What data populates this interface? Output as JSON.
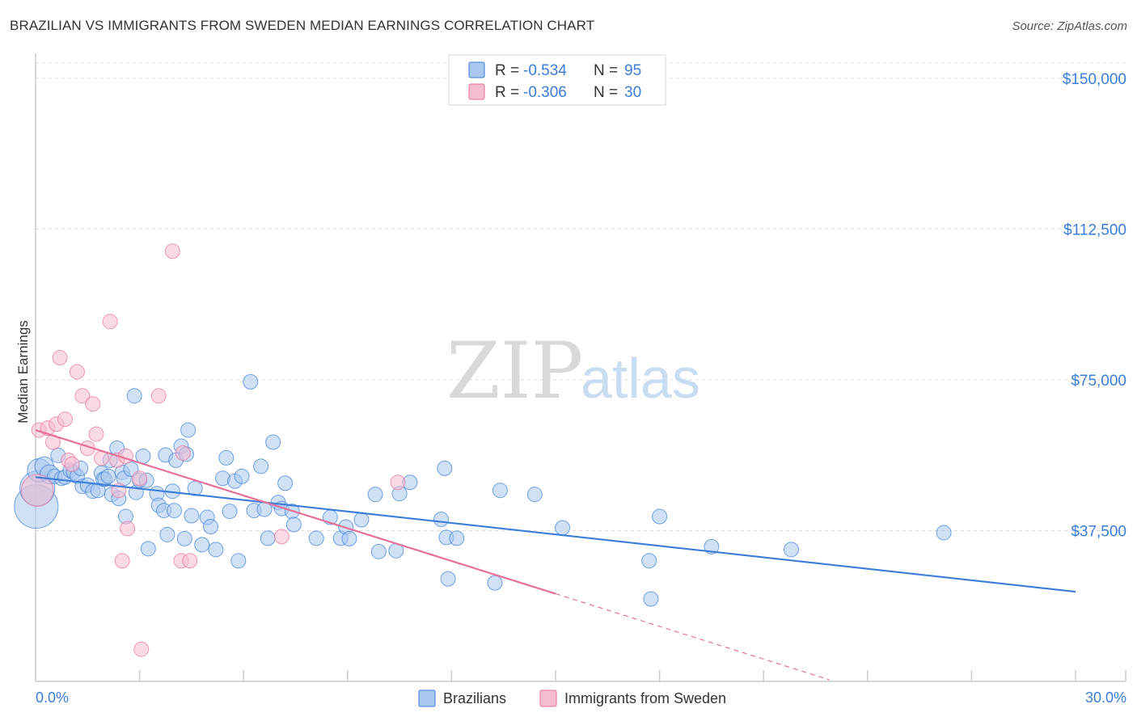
{
  "title": "BRAZILIAN VS IMMIGRANTS FROM SWEDEN MEDIAN EARNINGS CORRELATION CHART",
  "source": "Source: ZipAtlas.com",
  "watermark": {
    "part1": "ZIP",
    "part2": "atlas"
  },
  "colors": {
    "blue": "#3b7dd8",
    "blue_fill": "#a9c8ef",
    "pink": "#e8709a",
    "pink_fill": "#f6bcd0"
  },
  "legend": {
    "r_label": "R =",
    "n_label": "N =",
    "rows": [
      {
        "r": "-0.534",
        "n": "95"
      },
      {
        "r": "-0.306",
        "n": "30"
      }
    ]
  },
  "chart_data": {
    "type": "scatter",
    "title": "BRAZILIAN VS IMMIGRANTS FROM SWEDEN MEDIAN EARNINGS CORRELATION CHART",
    "xlabel": "",
    "ylabel": "Median Earnings",
    "xlim": [
      0,
      30
    ],
    "ylim": [
      0,
      157000
    ],
    "x_tick_labels": [
      "0.0%",
      "30.0%"
    ],
    "y_ticks": [
      {
        "value": 37500,
        "label": "$37,500"
      },
      {
        "value": 75000,
        "label": "$75,000"
      },
      {
        "value": 112500,
        "label": "$112,500"
      },
      {
        "value": 150000,
        "label": "$150,000"
      }
    ],
    "series": [
      {
        "name": "Brazilians",
        "r": -0.534,
        "n": 95,
        "trend": {
          "x0": 0,
          "y0": 50800,
          "x1": 30,
          "y1": 22300
        },
        "points": [
          [
            0.02,
            43500,
            3
          ],
          [
            0.05,
            48000,
            2.4
          ],
          [
            0.1,
            52500,
            1.6
          ],
          [
            0.25,
            53500,
            1.3
          ],
          [
            0.4,
            51500,
            1.3
          ],
          [
            0.55,
            51000,
            1
          ],
          [
            0.65,
            56200,
            1
          ],
          [
            0.75,
            50500,
            1
          ],
          [
            0.85,
            50800,
            1
          ],
          [
            1.0,
            52500,
            1
          ],
          [
            1.1,
            52000,
            1
          ],
          [
            1.2,
            51000,
            1
          ],
          [
            1.3,
            53000,
            1
          ],
          [
            1.35,
            48500,
            1
          ],
          [
            1.5,
            48800,
            1
          ],
          [
            1.65,
            47300,
            1
          ],
          [
            1.8,
            47500,
            1
          ],
          [
            1.9,
            51800,
            1
          ],
          [
            1.95,
            50300,
            1
          ],
          [
            2.0,
            50300,
            1
          ],
          [
            2.1,
            51000,
            1
          ],
          [
            2.15,
            55000,
            1
          ],
          [
            2.2,
            46500,
            1
          ],
          [
            2.35,
            58000,
            1
          ],
          [
            2.4,
            45500,
            1
          ],
          [
            2.5,
            52000,
            1
          ],
          [
            2.55,
            50500,
            1
          ],
          [
            2.6,
            41000,
            1
          ],
          [
            2.75,
            52800,
            1
          ],
          [
            2.85,
            71000,
            1
          ],
          [
            2.9,
            47000,
            1
          ],
          [
            3.0,
            50000,
            1
          ],
          [
            3.1,
            56000,
            1
          ],
          [
            3.2,
            50000,
            1
          ],
          [
            3.25,
            33000,
            1
          ],
          [
            3.5,
            46700,
            1
          ],
          [
            3.55,
            43800,
            1
          ],
          [
            3.7,
            42500,
            1
          ],
          [
            3.75,
            56300,
            1
          ],
          [
            3.8,
            36500,
            1
          ],
          [
            3.95,
            47300,
            1
          ],
          [
            4.0,
            42500,
            1
          ],
          [
            4.05,
            55000,
            1
          ],
          [
            4.2,
            58500,
            1
          ],
          [
            4.3,
            35500,
            1
          ],
          [
            4.35,
            56500,
            1
          ],
          [
            4.4,
            62500,
            1
          ],
          [
            4.5,
            41200,
            1
          ],
          [
            4.6,
            48000,
            1
          ],
          [
            4.8,
            34000,
            1
          ],
          [
            4.95,
            40800,
            1
          ],
          [
            5.05,
            38500,
            1
          ],
          [
            5.2,
            32800,
            1
          ],
          [
            5.4,
            50500,
            1
          ],
          [
            5.5,
            55600,
            1
          ],
          [
            5.6,
            42300,
            1
          ],
          [
            5.75,
            49800,
            1
          ],
          [
            5.85,
            30000,
            1
          ],
          [
            5.95,
            51000,
            1
          ],
          [
            6.2,
            74500,
            1
          ],
          [
            6.3,
            42500,
            1
          ],
          [
            6.5,
            53500,
            1
          ],
          [
            6.6,
            42800,
            1
          ],
          [
            6.7,
            35600,
            1
          ],
          [
            6.85,
            59500,
            1
          ],
          [
            7.0,
            44500,
            1
          ],
          [
            7.1,
            43000,
            1
          ],
          [
            7.2,
            49300,
            1
          ],
          [
            7.4,
            42300,
            1
          ],
          [
            7.45,
            39000,
            1
          ],
          [
            8.1,
            35600,
            1
          ],
          [
            8.5,
            40800,
            1
          ],
          [
            8.8,
            35600,
            1
          ],
          [
            8.95,
            38400,
            1
          ],
          [
            9.05,
            35500,
            1
          ],
          [
            9.4,
            40200,
            1
          ],
          [
            9.8,
            46500,
            1
          ],
          [
            9.9,
            32300,
            1
          ],
          [
            10.4,
            32500,
            1
          ],
          [
            10.5,
            46700,
            1
          ],
          [
            10.8,
            49500,
            1
          ],
          [
            11.7,
            40300,
            1
          ],
          [
            11.8,
            53000,
            1
          ],
          [
            11.85,
            35800,
            1
          ],
          [
            11.9,
            25500,
            1
          ],
          [
            12.15,
            35600,
            1
          ],
          [
            13.25,
            24500,
            1
          ],
          [
            13.4,
            47500,
            1
          ],
          [
            14.4,
            46500,
            1
          ],
          [
            15.2,
            38200,
            1
          ],
          [
            17.7,
            30000,
            1
          ],
          [
            17.75,
            20500,
            1
          ],
          [
            18.0,
            41000,
            1
          ],
          [
            19.5,
            33500,
            1
          ],
          [
            21.8,
            32800,
            1
          ],
          [
            26.2,
            37000,
            1
          ]
        ]
      },
      {
        "name": "Immigrants from Sweden",
        "r": -0.306,
        "n": 30,
        "trend": {
          "x0": 0,
          "y0": 62500,
          "x1": 15.0,
          "y1": 21800
        },
        "trend_dashed": {
          "x0": 15.0,
          "y0": 21800,
          "x1": 22.9,
          "y1": 400
        },
        "points": [
          [
            0.05,
            47500,
            2.2
          ],
          [
            0.1,
            62500,
            1
          ],
          [
            0.35,
            63000,
            1
          ],
          [
            0.5,
            59500,
            1
          ],
          [
            0.6,
            64000,
            1
          ],
          [
            0.7,
            80500,
            1
          ],
          [
            0.85,
            65200,
            1
          ],
          [
            0.95,
            55000,
            1
          ],
          [
            1.05,
            54000,
            1
          ],
          [
            1.2,
            77000,
            1
          ],
          [
            1.35,
            71000,
            1
          ],
          [
            1.5,
            58000,
            1
          ],
          [
            1.65,
            69000,
            1
          ],
          [
            1.75,
            61500,
            1
          ],
          [
            1.9,
            55500,
            1
          ],
          [
            2.15,
            89500,
            1
          ],
          [
            2.4,
            47500,
            1
          ],
          [
            2.35,
            55000,
            1
          ],
          [
            2.5,
            30000,
            1
          ],
          [
            2.6,
            56000,
            1
          ],
          [
            2.65,
            38000,
            1
          ],
          [
            3.0,
            50500,
            1
          ],
          [
            3.05,
            8000,
            1
          ],
          [
            3.55,
            71000,
            1
          ],
          [
            3.95,
            107000,
            1
          ],
          [
            4.2,
            30000,
            1
          ],
          [
            4.25,
            56800,
            1
          ],
          [
            4.45,
            30000,
            1
          ],
          [
            7.1,
            36000,
            1
          ],
          [
            10.45,
            49500,
            1
          ]
        ]
      }
    ]
  },
  "bottom_legend": [
    {
      "label": "Brazilians"
    },
    {
      "label": "Immigrants from Sweden"
    }
  ]
}
